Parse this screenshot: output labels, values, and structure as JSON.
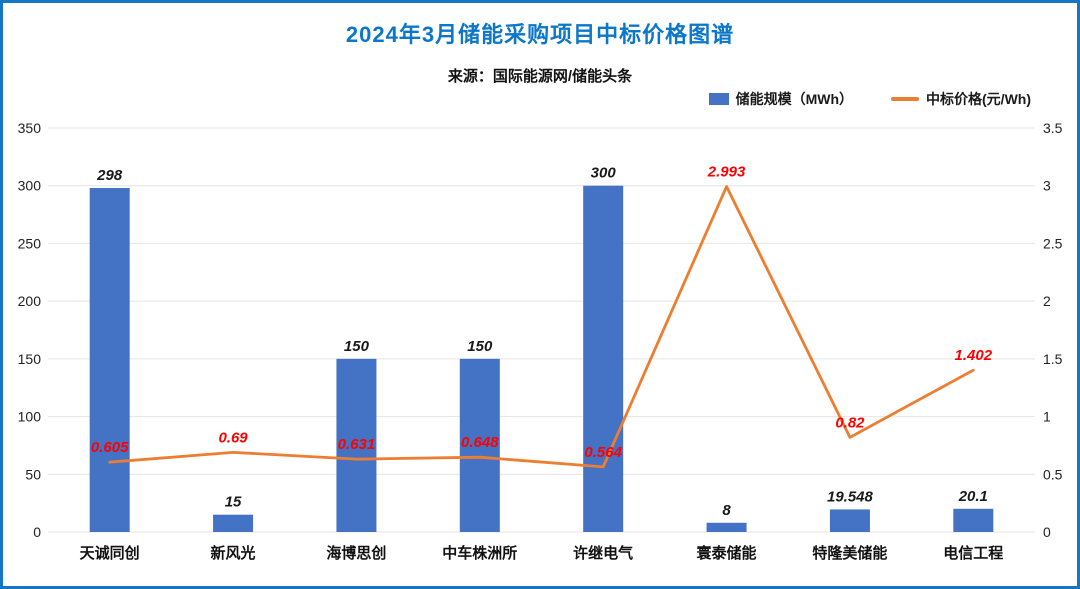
{
  "header": {
    "title": "2024年3月储能采购项目中标价格图谱",
    "source": "来源：国际能源网/储能头条"
  },
  "colors": {
    "bar": "#4472C4",
    "line": "#ED7D31",
    "line_value_label": "#FF0000",
    "title": "#0C77C9",
    "border": "#1776C4",
    "grid": "#E4E4E4"
  },
  "legend": {
    "position": "top-right",
    "items": [
      {
        "label": "储能规模（MWh）",
        "swatch": "square",
        "color": "#4472C4"
      },
      {
        "label": "中标价格(元/Wh)",
        "swatch": "line",
        "color": "#ED7D31"
      }
    ]
  },
  "chart_data": {
    "type": "combo",
    "title": "2024年3月储能采购项目中标价格图谱",
    "subtitle": "来源：国际能源网/储能头条",
    "categories": [
      "天诚同创",
      "新风光",
      "海博思创",
      "中车株洲所",
      "许继电气",
      "寰泰储能",
      "特隆美储能",
      "电信工程"
    ],
    "series": [
      {
        "name": "储能规模（MWh）",
        "type": "bar",
        "axis": "left",
        "color": "#4472C4",
        "values": [
          298,
          15,
          150,
          150,
          300,
          8,
          19.548,
          20.1
        ],
        "labels": [
          "298",
          "15",
          "150",
          "150",
          "300",
          "8",
          "19.548",
          "20.1"
        ],
        "label_color": "#1A1A1A"
      },
      {
        "name": "中标价格(元/Wh)",
        "type": "line",
        "axis": "right",
        "color": "#ED7D31",
        "values": [
          0.605,
          0.69,
          0.631,
          0.648,
          0.564,
          2.993,
          0.82,
          1.402
        ],
        "labels": [
          "0.605",
          "0.69",
          "0.631",
          "0.648",
          "0.564",
          "2.993",
          "0.82",
          "1.402"
        ],
        "label_color": "#FF0000"
      }
    ],
    "left_axis": {
      "min": 0,
      "max": 350,
      "ticks": [
        "0",
        "50",
        "100",
        "150",
        "200",
        "250",
        "300",
        "350"
      ]
    },
    "right_axis": {
      "min": 0,
      "max": 3.5,
      "ticks": [
        "0",
        "0.5",
        "1",
        "1.5",
        "2",
        "2.5",
        "3",
        "3.5"
      ]
    },
    "grid": true,
    "legend_position": "top-right"
  }
}
